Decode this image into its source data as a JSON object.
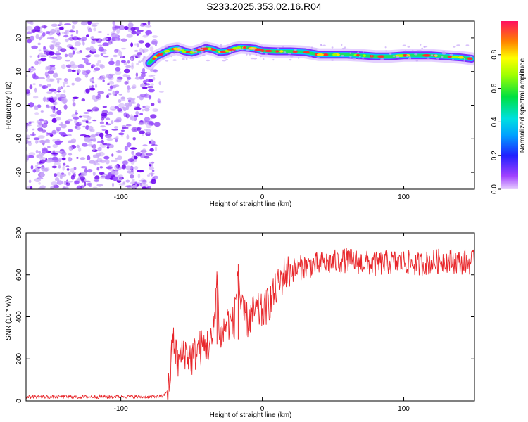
{
  "title": "S233.2025.353.02.16.R04",
  "colors": {
    "series": "#e8262a",
    "scatter_dark": "#6a00f0",
    "scatter_light": "#c8a8f8",
    "axis": "#000000"
  },
  "chart_data": [
    {
      "type": "heatmap",
      "xlabel": "Height of straight line (km)",
      "ylabel": "Frequency (Hz)",
      "xlim": [
        -167,
        150
      ],
      "ylim": [
        -25,
        25
      ],
      "x_ticks": [
        "-100",
        "0",
        "100"
      ],
      "x_tick_values": [
        -100,
        0,
        100
      ],
      "y_ticks": [
        "20",
        "10",
        "0",
        "-10",
        "-20"
      ],
      "y_tick_values": [
        20,
        10,
        0,
        -10,
        -20
      ],
      "noise_region_x": [
        -167,
        -75
      ],
      "ridge": {
        "x": [
          -80,
          -75,
          -70,
          -65,
          -60,
          -55,
          -50,
          -45,
          -40,
          -35,
          -30,
          -25,
          -20,
          -15,
          -10,
          -5,
          0,
          10,
          20,
          30,
          40,
          50,
          60,
          70,
          80,
          90,
          100,
          110,
          120,
          130,
          140,
          148
        ],
        "freq": [
          12.5,
          14.5,
          15.5,
          16.5,
          16.8,
          16.0,
          15.6,
          16.2,
          17.0,
          16.6,
          15.8,
          16.0,
          16.8,
          17.2,
          17.0,
          16.8,
          16.2,
          16.0,
          16.0,
          15.8,
          15.0,
          15.0,
          15.0,
          14.8,
          14.5,
          14.5,
          14.8,
          14.8,
          14.8,
          14.5,
          14.2,
          13.8
        ]
      },
      "colorbar": {
        "label": "Normalized spectral amplitude",
        "ticks": [
          "0.0",
          "0.2",
          "0.4",
          "0.6",
          "0.8"
        ],
        "tick_values": [
          0.0,
          0.2,
          0.4,
          0.6,
          0.8
        ],
        "range": [
          0,
          1
        ]
      }
    },
    {
      "type": "line",
      "xlabel": "Height of straight line (km)",
      "ylabel": "SNR (10 * v/v)",
      "xlim": [
        -167,
        150
      ],
      "ylim": [
        0,
        800
      ],
      "x_ticks": [
        "-100",
        "0",
        "100"
      ],
      "x_tick_values": [
        -100,
        0,
        100
      ],
      "y_ticks": [
        "0",
        "200",
        "400",
        "600",
        "800"
      ],
      "y_tick_values": [
        0,
        200,
        400,
        600,
        800
      ],
      "series": [
        {
          "x": [
            -167,
            -160,
            -150,
            -140,
            -130,
            -120,
            -110,
            -100,
            -90,
            -80,
            -70,
            -66,
            -63,
            -60,
            -55,
            -50,
            -45,
            -40,
            -35,
            -32,
            -30,
            -28,
            -25,
            -20,
            -17,
            -15,
            -10,
            -5,
            0,
            5,
            10,
            15,
            20,
            25,
            30,
            40,
            50,
            60,
            70,
            80,
            90,
            100,
            110,
            120,
            130,
            140,
            150
          ],
          "y": [
            18,
            20,
            19,
            21,
            18,
            20,
            19,
            21,
            20,
            19,
            22,
            60,
            300,
            180,
            240,
            200,
            250,
            260,
            280,
            600,
            300,
            320,
            380,
            360,
            650,
            420,
            380,
            430,
            420,
            470,
            530,
            600,
            620,
            630,
            640,
            650,
            660,
            670,
            660,
            650,
            660,
            660,
            650,
            660,
            670,
            660,
            660
          ]
        }
      ]
    }
  ]
}
